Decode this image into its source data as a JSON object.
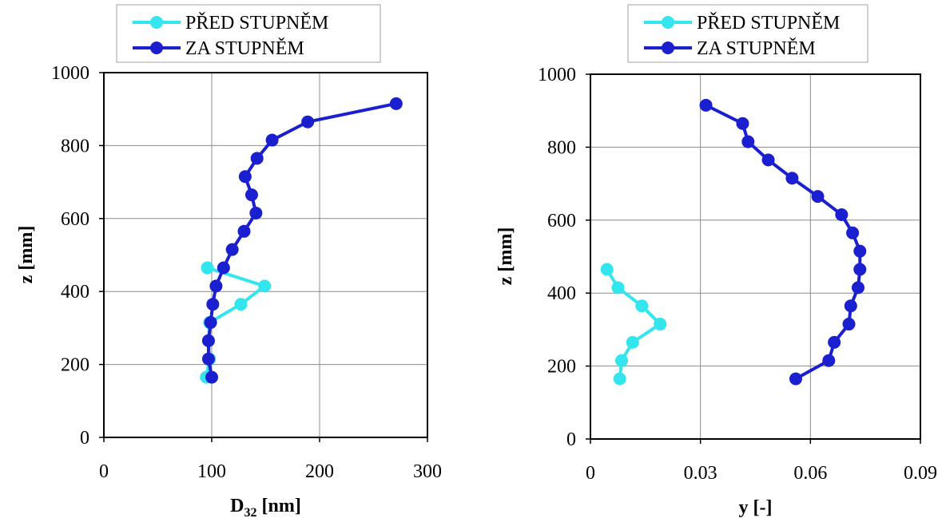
{
  "chart_data": [
    {
      "type": "line",
      "x_axis": {
        "label_main": "D",
        "label_sub": "32",
        "label_rest": " [nm]",
        "range": [
          0,
          300
        ],
        "ticks": [
          0,
          100,
          200,
          300
        ],
        "tick_labels": [
          "0",
          "100",
          "200",
          "300"
        ]
      },
      "y_axis": {
        "label": "z [mm]",
        "range": [
          0,
          1000
        ],
        "ticks": [
          0,
          200,
          400,
          600,
          800,
          1000
        ],
        "tick_labels": [
          "0",
          "200",
          "400",
          "600",
          "800",
          "1000"
        ]
      },
      "grid": true,
      "legend": "top",
      "series": [
        {
          "name": "PŘED STUPNĚM",
          "color": "#33e6ee",
          "points": [
            [
              95,
              165
            ],
            [
              98,
              215
            ],
            [
              97,
              265
            ],
            [
              98,
              315
            ],
            [
              127,
              365
            ],
            [
              149,
              415
            ],
            [
              96,
              465
            ]
          ]
        },
        {
          "name": "ZA STUPNĚM",
          "color": "#1a1fcf",
          "points": [
            [
              100,
              165
            ],
            [
              97,
              215
            ],
            [
              97,
              265
            ],
            [
              99,
              315
            ],
            [
              101,
              365
            ],
            [
              104,
              415
            ],
            [
              111,
              465
            ],
            [
              119,
              515
            ],
            [
              130,
              565
            ],
            [
              141,
              615
            ],
            [
              137,
              665
            ],
            [
              131,
              715
            ],
            [
              142,
              765
            ],
            [
              156,
              815
            ],
            [
              189,
              865
            ],
            [
              271,
              915
            ]
          ]
        }
      ]
    },
    {
      "type": "line",
      "x_axis": {
        "label": "y [-]",
        "range": [
          0,
          0.09
        ],
        "ticks": [
          0,
          0.03,
          0.06,
          0.09
        ],
        "tick_labels": [
          "0",
          "0.03",
          "0.06",
          "0.09"
        ]
      },
      "y_axis": {
        "label": "z [mm]",
        "range": [
          0,
          1000
        ],
        "ticks": [
          0,
          200,
          400,
          600,
          800,
          1000
        ],
        "tick_labels": [
          "0",
          "200",
          "400",
          "600",
          "800",
          "1000"
        ]
      },
      "grid": true,
      "legend": "top",
      "series": [
        {
          "name": "PŘED STUPNĚM",
          "color": "#33e6ee",
          "points": [
            [
              0.008,
              165
            ],
            [
              0.0085,
              215
            ],
            [
              0.0115,
              265
            ],
            [
              0.019,
              315
            ],
            [
              0.014,
              365
            ],
            [
              0.0075,
              415
            ],
            [
              0.0045,
              465
            ]
          ]
        },
        {
          "name": "ZA STUPNĚM",
          "color": "#1a1fcf",
          "points": [
            [
              0.056,
              165
            ],
            [
              0.065,
              215
            ],
            [
              0.0665,
              265
            ],
            [
              0.0705,
              315
            ],
            [
              0.071,
              365
            ],
            [
              0.073,
              415
            ],
            [
              0.0735,
              465
            ],
            [
              0.0735,
              515
            ],
            [
              0.0715,
              565
            ],
            [
              0.0685,
              615
            ],
            [
              0.062,
              665
            ],
            [
              0.055,
              715
            ],
            [
              0.0485,
              765
            ],
            [
              0.043,
              815
            ],
            [
              0.0415,
              865
            ],
            [
              0.0315,
              915
            ]
          ]
        }
      ]
    }
  ]
}
